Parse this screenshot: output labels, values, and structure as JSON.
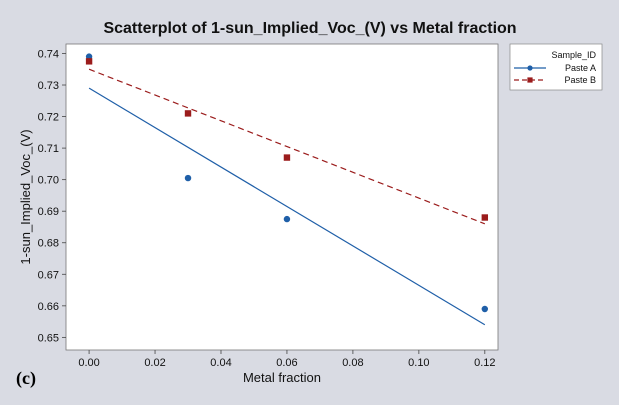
{
  "panel_label": "(c)",
  "chart_data": {
    "type": "scatter",
    "title": "Scatterplot of 1-sun_Implied_Voc_(V) vs Metal fraction",
    "xlabel": "Metal fraction",
    "ylabel": "1-sun_Implied_Voc_(V)",
    "xlim": [
      -0.007,
      0.124
    ],
    "ylim": [
      0.646,
      0.743
    ],
    "xticks": [
      0.0,
      0.02,
      0.04,
      0.06,
      0.08,
      0.1,
      0.12
    ],
    "xtick_labels": [
      "0.00",
      "0.02",
      "0.04",
      "0.06",
      "0.08",
      "0.10",
      "0.12"
    ],
    "yticks": [
      0.65,
      0.66,
      0.67,
      0.68,
      0.69,
      0.7,
      0.71,
      0.72,
      0.73,
      0.74
    ],
    "ytick_labels": [
      "0.65",
      "0.66",
      "0.67",
      "0.68",
      "0.69",
      "0.70",
      "0.71",
      "0.72",
      "0.73",
      "0.74"
    ],
    "grid": false,
    "legend": {
      "title": "Sample_ID",
      "placement": "top-right outside plot"
    },
    "series": [
      {
        "name": "Paste A",
        "color": "#1f5fa8",
        "marker": "circle",
        "line_style": "solid",
        "points": [
          {
            "x": 0.0,
            "y": 0.739
          },
          {
            "x": 0.03,
            "y": 0.7005
          },
          {
            "x": 0.06,
            "y": 0.6875
          },
          {
            "x": 0.12,
            "y": 0.659
          }
        ],
        "fit_line": {
          "x": [
            0.0,
            0.12
          ],
          "y": [
            0.729,
            0.654
          ]
        }
      },
      {
        "name": "Paste B",
        "color": "#9b1c1c",
        "marker": "square",
        "line_style": "dashed",
        "points": [
          {
            "x": 0.0,
            "y": 0.7375
          },
          {
            "x": 0.03,
            "y": 0.721
          },
          {
            "x": 0.06,
            "y": 0.707
          },
          {
            "x": 0.12,
            "y": 0.688
          }
        ],
        "fit_line": {
          "x": [
            0.0,
            0.12
          ],
          "y": [
            0.735,
            0.686
          ]
        }
      }
    ]
  }
}
